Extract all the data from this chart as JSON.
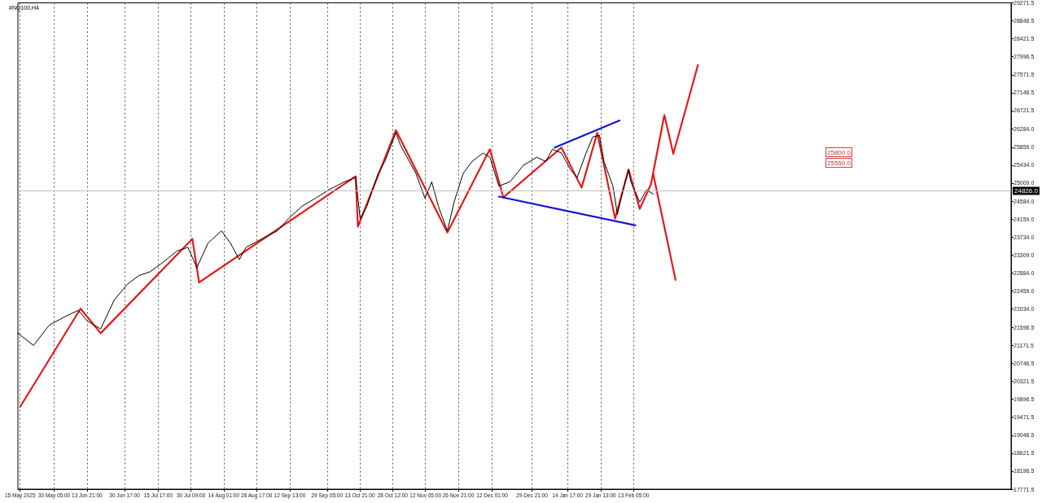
{
  "chart_data": {
    "type": "line",
    "title": "#NQ100,H4",
    "xlim": [
      "2025-05-14",
      "2026-08-01"
    ],
    "xticks": [
      {
        "value": "2025-05-15",
        "label": "15 May 2025"
      },
      {
        "value": "2025-05-30T05:00",
        "label": "30 May 05:00"
      },
      {
        "value": "2025-06-13T21:00",
        "label": "13 Jun 21:00"
      },
      {
        "value": "2025-06-30T17:00",
        "label": "30 Jun 17:00"
      },
      {
        "value": "2025-07-15T17:00",
        "label": "15 Jul 17:00"
      },
      {
        "value": "2025-07-30T09:00",
        "label": "30 Jul 09:00"
      },
      {
        "value": "2025-08-14T01:00",
        "label": "14 Aug 01:00"
      },
      {
        "value": "2025-08-28T17:00",
        "label": "28 Aug 17:00"
      },
      {
        "value": "2025-09-12T13:00",
        "label": "12 Sep 13:00"
      },
      {
        "value": "2025-09-29T05:00",
        "label": "29 Sep 05:00"
      },
      {
        "value": "2025-10-13T21:00",
        "label": "13 Oct 21:00"
      },
      {
        "value": "2025-10-28T12:00",
        "label": "28 Oct 12:00"
      },
      {
        "value": "2025-11-12T05:00",
        "label": "12 Nov 05:00"
      },
      {
        "value": "2025-11-26T21:00",
        "label": "26 Nov 21:00"
      },
      {
        "value": "2025-12-12T01:00",
        "label": "12 Dec 01:00"
      },
      {
        "value": "2025-12-29T21:00",
        "label": "29 Dec 21:00"
      },
      {
        "value": "2026-01-14T17:00",
        "label": "14 Jan 17:00"
      },
      {
        "value": "2026-01-29T13:00",
        "label": "29 Jan 13:00"
      },
      {
        "value": "2026-02-13T05:00",
        "label": "13 Feb 05:00"
      }
    ],
    "ylim": [
      17771.5,
      29271.5
    ],
    "yticks": [
      17771.5,
      18196.5,
      18621.5,
      19046.5,
      19471.5,
      19896.5,
      20321.5,
      20746.5,
      21171.5,
      21596.5,
      {
        "value": 22034,
        "label": "22034.0"
      },
      {
        "value": 22459,
        "label": "22459.0"
      },
      {
        "value": 22884,
        "label": "22884.0"
      },
      {
        "value": 23309,
        "label": "23309.0"
      },
      {
        "value": 23734,
        "label": "23734.0"
      },
      {
        "value": 24159,
        "label": "24159.0"
      },
      {
        "value": 24584,
        "label": "24584.0"
      },
      {
        "value": 25009,
        "label": "25009.0"
      },
      {
        "value": 25434,
        "label": "25434.0"
      },
      {
        "value": 25859,
        "label": "25859.0"
      },
      {
        "value": 26284,
        "label": "26284.0"
      },
      26721.5,
      27146.5,
      27571.5,
      27996.5,
      28421.5,
      28846.5,
      29271.5
    ],
    "grid": "x",
    "marker": "none",
    "series": [
      {
        "color": "#000000",
        "x": [
          "2025-05-14",
          "2025-05-21",
          "2025-05-28",
          "2025-06-04",
          "2025-06-10",
          "2025-06-14",
          "2025-06-20",
          "2025-06-26",
          "2025-07-02",
          "2025-07-07",
          "2025-07-12",
          "2025-07-17",
          "2025-07-24",
          "2025-07-29",
          "2025-08-02",
          "2025-08-07",
          "2025-08-13",
          "2025-08-17",
          "2025-08-21",
          "2025-08-24",
          "2025-08-31",
          "2025-09-07",
          "2025-09-12",
          "2025-09-18",
          "2025-09-24",
          "2025-09-30",
          "2025-10-07",
          "2025-10-12",
          "2025-10-14",
          "2025-10-17",
          "2025-10-22",
          "2025-10-25",
          "2025-10-30",
          "2025-11-01",
          "2025-11-05",
          "2025-11-08",
          "2025-11-12",
          "2025-11-15",
          "2025-11-18",
          "2025-11-22",
          "2025-11-25",
          "2025-11-29",
          "2025-12-03",
          "2025-12-08",
          "2025-12-11",
          "2025-12-15",
          "2025-12-20",
          "2025-12-26",
          "2026-01-01",
          "2026-01-05",
          "2026-01-08",
          "2026-01-12",
          "2026-01-16",
          "2026-01-19",
          "2026-01-23",
          "2026-01-26",
          "2026-01-29",
          "2026-01-31",
          "2026-02-04",
          "2026-02-06",
          "2026-02-09",
          "2026-02-11",
          "2026-02-12",
          "2026-02-16",
          "2026-02-19",
          "2026-02-22"
        ],
        "values": [
          21460,
          21170,
          21650,
          21850,
          22000,
          21750,
          21560,
          22240,
          22620,
          22820,
          22910,
          23100,
          23400,
          23490,
          23010,
          23590,
          23880,
          23590,
          23200,
          23490,
          23690,
          23880,
          24170,
          24460,
          24650,
          24850,
          25040,
          25140,
          24170,
          24460,
          25230,
          25520,
          26200,
          25910,
          25520,
          25230,
          24650,
          25040,
          24460,
          23880,
          24560,
          25230,
          25520,
          25720,
          25620,
          24940,
          25040,
          25430,
          25620,
          25520,
          25810,
          25720,
          25330,
          25140,
          25720,
          26100,
          26140,
          25520,
          24940,
          24270,
          24940,
          25330,
          25040,
          24560,
          24850,
          24750
        ]
      },
      {
        "color": "#e31a1c",
        "x": [
          "2025-05-15",
          "2025-06-11",
          "2025-06-20",
          "2025-07-31",
          "2025-08-03",
          "2025-10-12",
          "2025-10-13",
          "2025-10-30",
          "2025-11-22",
          "2025-12-11",
          "2025-12-17",
          "2026-01-12",
          "2026-01-21",
          "2026-01-28",
          "2026-02-05",
          "2026-02-11",
          "2026-02-16",
          "2026-02-21",
          "2026-02-27",
          "2026-03-03",
          "2026-03-14"
        ],
        "values": [
          19720,
          22040,
          21460,
          23690,
          22660,
          25170,
          23980,
          26260,
          23840,
          25810,
          24670,
          25850,
          24900,
          26200,
          24170,
          25330,
          24400,
          24980,
          26620,
          25700,
          27800
        ]
      },
      {
        "color": "#e31a1c",
        "x": [
          "2026-02-22",
          "2026-03-04"
        ],
        "values": [
          25230,
          22720
        ]
      },
      {
        "color": "#1414d8",
        "x": [
          "2026-01-09",
          "2026-02-07"
        ],
        "values": [
          25850,
          26490
        ]
      },
      {
        "color": "#1414d8",
        "x": [
          "2025-12-15",
          "2026-02-14"
        ],
        "values": [
          24690,
          24010
        ]
      }
    ],
    "ref_lines": [
      {
        "axis": "y",
        "value": 24826,
        "label": "24826.0",
        "color": "#c0c0c0"
      }
    ],
    "annotations": [
      "25800.0",
      "25550.0"
    ]
  }
}
